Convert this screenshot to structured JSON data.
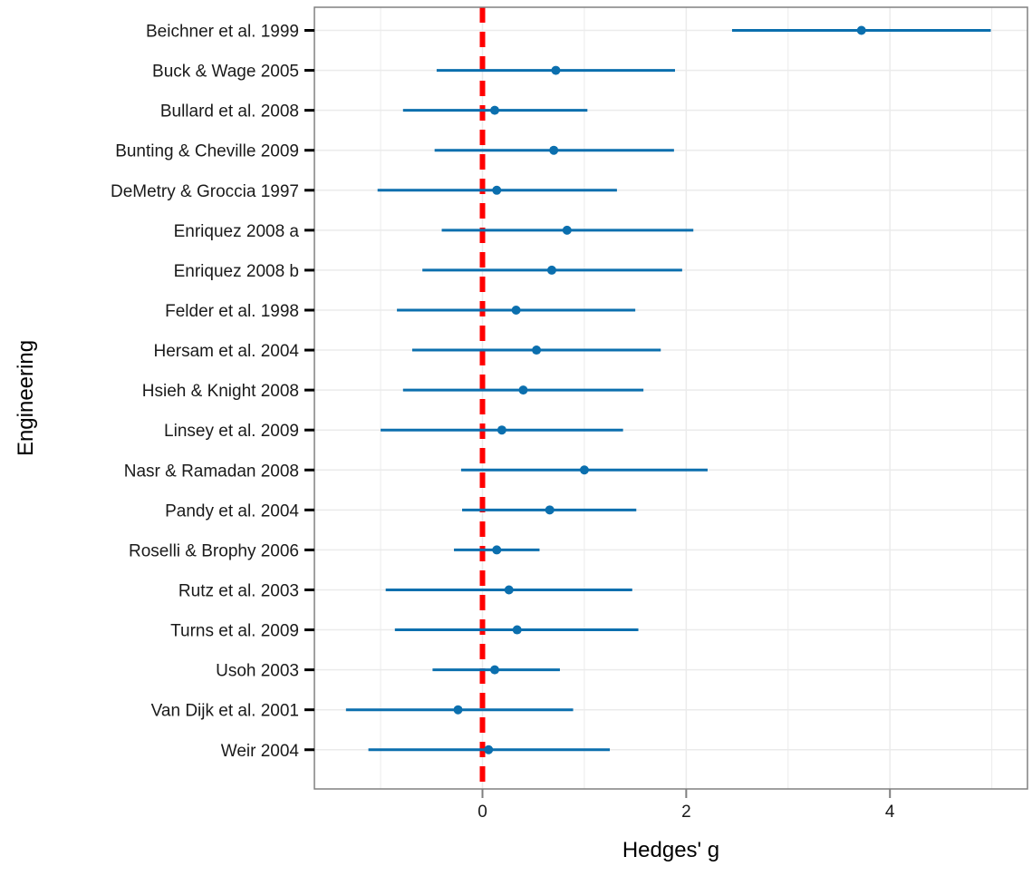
{
  "chart_data": {
    "type": "forest",
    "xlabel": "Hedges' g",
    "ylabel": "Engineering",
    "xlim": [
      -1.65,
      5.35
    ],
    "x_ticks": [
      0,
      2,
      4
    ],
    "reference_line": 0,
    "grid": true,
    "colors": {
      "series": "#0b6fae",
      "reference": "#ff0000",
      "frame": "#808080",
      "grid": "#ebebeb"
    },
    "studies": [
      {
        "label": "Beichner et al. 1999",
        "estimate": 3.72,
        "lower": 2.45,
        "upper": 4.99
      },
      {
        "label": "Buck & Wage 2005",
        "estimate": 0.72,
        "lower": -0.45,
        "upper": 1.89
      },
      {
        "label": "Bullard et al. 2008",
        "estimate": 0.12,
        "lower": -0.78,
        "upper": 1.03
      },
      {
        "label": "Bunting & Cheville 2009",
        "estimate": 0.7,
        "lower": -0.47,
        "upper": 1.88
      },
      {
        "label": "DeMetry & Groccia 1997",
        "estimate": 0.14,
        "lower": -1.03,
        "upper": 1.32
      },
      {
        "label": "Enriquez 2008 a",
        "estimate": 0.83,
        "lower": -0.4,
        "upper": 2.07
      },
      {
        "label": "Enriquez 2008 b",
        "estimate": 0.68,
        "lower": -0.59,
        "upper": 1.96
      },
      {
        "label": "Felder et al. 1998",
        "estimate": 0.33,
        "lower": -0.84,
        "upper": 1.5
      },
      {
        "label": "Hersam et al. 2004",
        "estimate": 0.53,
        "lower": -0.69,
        "upper": 1.75
      },
      {
        "label": "Hsieh & Knight 2008",
        "estimate": 0.4,
        "lower": -0.78,
        "upper": 1.58
      },
      {
        "label": "Linsey et al. 2009",
        "estimate": 0.19,
        "lower": -1.0,
        "upper": 1.38
      },
      {
        "label": "Nasr & Ramadan 2008",
        "estimate": 1.0,
        "lower": -0.21,
        "upper": 2.21
      },
      {
        "label": "Pandy et al. 2004",
        "estimate": 0.66,
        "lower": -0.2,
        "upper": 1.51
      },
      {
        "label": "Roselli & Brophy 2006",
        "estimate": 0.14,
        "lower": -0.28,
        "upper": 0.56
      },
      {
        "label": "Rutz et al. 2003",
        "estimate": 0.26,
        "lower": -0.95,
        "upper": 1.47
      },
      {
        "label": "Turns et al. 2009",
        "estimate": 0.34,
        "lower": -0.86,
        "upper": 1.53
      },
      {
        "label": "Usoh 2003",
        "estimate": 0.12,
        "lower": -0.49,
        "upper": 0.76
      },
      {
        "label": "Van Dijk et al. 2001",
        "estimate": -0.24,
        "lower": -1.34,
        "upper": 0.89
      },
      {
        "label": "Weir 2004",
        "estimate": 0.06,
        "lower": -1.12,
        "upper": 1.25
      }
    ]
  }
}
